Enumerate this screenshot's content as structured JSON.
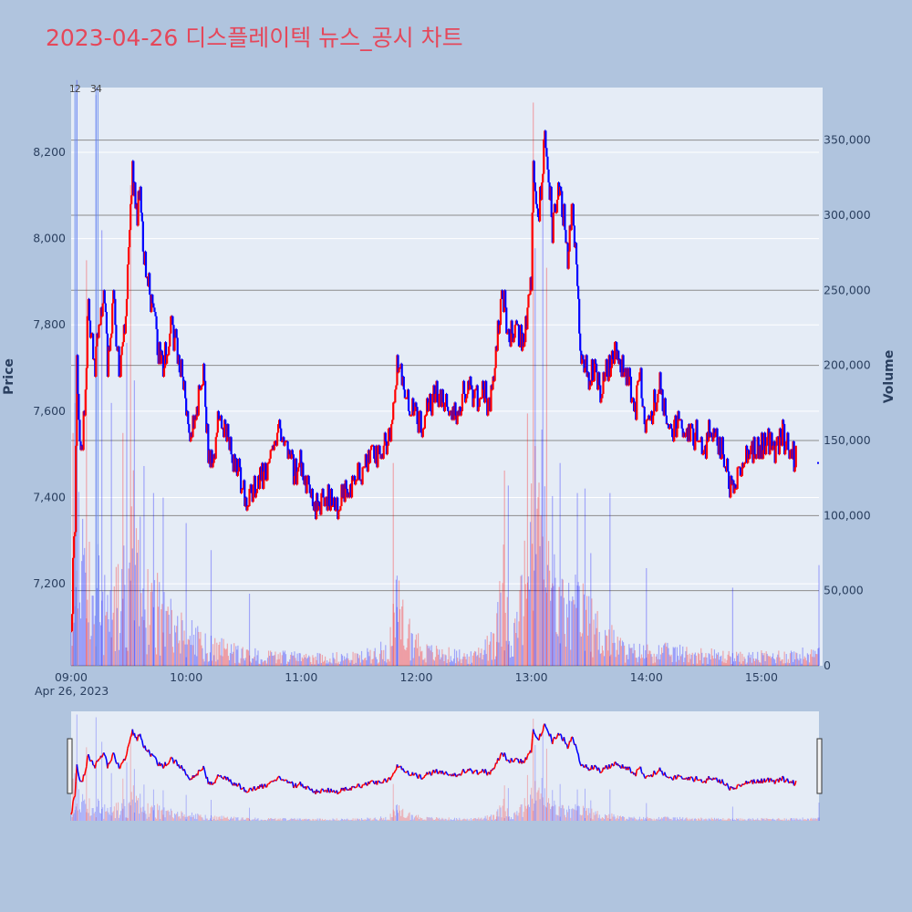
{
  "title": "2023-04-26 디스플레이텍 뉴스_공시 차트",
  "colors": {
    "background": "#b0c4de",
    "plot_bg": "#e5ecf6",
    "up": "#ff0000",
    "down": "#0000ff",
    "title": "#e5475a"
  },
  "chart_data": {
    "type": "line",
    "date_label": "Apr 26, 2023",
    "y_price": {
      "title": "Price",
      "range": [
        7010,
        8350
      ],
      "ticks": [
        7200,
        7400,
        7600,
        7800,
        8000,
        8200
      ],
      "tick_labels": [
        "7,200",
        "7,400",
        "7,600",
        "7,800",
        "8,000",
        "8,200"
      ]
    },
    "y_volume": {
      "title": "Volume",
      "range": [
        0,
        385000
      ],
      "ticks": [
        0,
        50000,
        100000,
        150000,
        200000,
        250000,
        300000,
        350000
      ],
      "tick_labels": [
        "0",
        "50,000",
        "100,000",
        "150,000",
        "200,000",
        "250,000",
        "300,000",
        "350,000"
      ]
    },
    "x_axis": {
      "range": [
        "09:00",
        "15:30"
      ],
      "ticks": [
        "09:00",
        "10:00",
        "11:00",
        "12:00",
        "13:00",
        "14:00",
        "15:00"
      ]
    },
    "news_markers": [
      {
        "label": "1",
        "time": "09:02"
      },
      {
        "label": "2",
        "time": "09:03"
      },
      {
        "label": "3",
        "time": "09:13"
      },
      {
        "label": "4",
        "time": "09:14"
      }
    ],
    "price_anchors": [
      [
        "09:00",
        7100
      ],
      [
        "09:02",
        7350
      ],
      [
        "09:03",
        7700
      ],
      [
        "09:05",
        7480
      ],
      [
        "09:07",
        7600
      ],
      [
        "09:09",
        7850
      ],
      [
        "09:12",
        7700
      ],
      [
        "09:15",
        7800
      ],
      [
        "09:17",
        7900
      ],
      [
        "09:19",
        7700
      ],
      [
        "09:22",
        7850
      ],
      [
        "09:25",
        7700
      ],
      [
        "09:28",
        7780
      ],
      [
        "09:30",
        7950
      ],
      [
        "09:32",
        8150
      ],
      [
        "09:34",
        8050
      ],
      [
        "09:36",
        8100
      ],
      [
        "09:38",
        7950
      ],
      [
        "09:42",
        7850
      ],
      [
        "09:45",
        7750
      ],
      [
        "09:48",
        7700
      ],
      [
        "09:52",
        7800
      ],
      [
        "09:55",
        7750
      ],
      [
        "09:58",
        7680
      ],
      [
        "10:00",
        7600
      ],
      [
        "10:03",
        7550
      ],
      [
        "10:06",
        7620
      ],
      [
        "10:09",
        7680
      ],
      [
        "10:12",
        7480
      ],
      [
        "10:15",
        7520
      ],
      [
        "10:17",
        7600
      ],
      [
        "10:20",
        7560
      ],
      [
        "10:24",
        7500
      ],
      [
        "10:28",
        7450
      ],
      [
        "10:32",
        7380
      ],
      [
        "10:36",
        7430
      ],
      [
        "10:40",
        7450
      ],
      [
        "10:45",
        7500
      ],
      [
        "10:49",
        7560
      ],
      [
        "10:52",
        7520
      ],
      [
        "10:56",
        7460
      ],
      [
        "11:00",
        7480
      ],
      [
        "11:03",
        7420
      ],
      [
        "11:08",
        7380
      ],
      [
        "11:13",
        7400
      ],
      [
        "11:18",
        7380
      ],
      [
        "11:24",
        7420
      ],
      [
        "11:30",
        7450
      ],
      [
        "11:34",
        7480
      ],
      [
        "11:38",
        7500
      ],
      [
        "11:42",
        7520
      ],
      [
        "11:46",
        7530
      ],
      [
        "11:48",
        7600
      ],
      [
        "11:50",
        7700
      ],
      [
        "11:53",
        7680
      ],
      [
        "11:56",
        7620
      ],
      [
        "12:00",
        7580
      ],
      [
        "12:03",
        7560
      ],
      [
        "12:06",
        7600
      ],
      [
        "12:10",
        7640
      ],
      [
        "12:14",
        7620
      ],
      [
        "12:18",
        7600
      ],
      [
        "12:22",
        7580
      ],
      [
        "12:25",
        7650
      ],
      [
        "12:28",
        7670
      ],
      [
        "12:31",
        7620
      ],
      [
        "12:34",
        7660
      ],
      [
        "12:37",
        7620
      ],
      [
        "12:40",
        7650
      ],
      [
        "12:43",
        7800
      ],
      [
        "12:45",
        7880
      ],
      [
        "12:48",
        7770
      ],
      [
        "12:52",
        7800
      ],
      [
        "12:55",
        7760
      ],
      [
        "12:58",
        7820
      ],
      [
        "13:00",
        7900
      ],
      [
        "13:01",
        8150
      ],
      [
        "13:03",
        8050
      ],
      [
        "13:05",
        8100
      ],
      [
        "13:07",
        8250
      ],
      [
        "13:09",
        8150
      ],
      [
        "13:11",
        8020
      ],
      [
        "13:14",
        8100
      ],
      [
        "13:17",
        8050
      ],
      [
        "13:19",
        7950
      ],
      [
        "13:21",
        8080
      ],
      [
        "13:24",
        7900
      ],
      [
        "13:26",
        7720
      ],
      [
        "13:30",
        7680
      ],
      [
        "13:33",
        7700
      ],
      [
        "13:36",
        7650
      ],
      [
        "13:40",
        7700
      ],
      [
        "13:44",
        7740
      ],
      [
        "13:48",
        7700
      ],
      [
        "13:51",
        7680
      ],
      [
        "13:54",
        7600
      ],
      [
        "13:57",
        7680
      ],
      [
        "14:00",
        7560
      ],
      [
        "14:03",
        7600
      ],
      [
        "14:07",
        7660
      ],
      [
        "14:10",
        7600
      ],
      [
        "14:14",
        7560
      ],
      [
        "14:18",
        7580
      ],
      [
        "14:22",
        7540
      ],
      [
        "14:26",
        7550
      ],
      [
        "14:30",
        7510
      ],
      [
        "14:34",
        7560
      ],
      [
        "14:38",
        7520
      ],
      [
        "14:42",
        7480
      ],
      [
        "14:44",
        7420
      ],
      [
        "14:46",
        7410
      ],
      [
        "14:49",
        7480
      ],
      [
        "14:52",
        7500
      ],
      [
        "14:55",
        7520
      ],
      [
        "14:59",
        7510
      ],
      [
        "15:03",
        7540
      ],
      [
        "15:07",
        7500
      ],
      [
        "15:10",
        7550
      ],
      [
        "15:14",
        7520
      ],
      [
        "15:18",
        7490
      ]
    ],
    "price_last": [
      "15:30",
      7480
    ],
    "volume_anchors": [
      [
        "09:00",
        20000
      ],
      [
        "09:02",
        120000
      ],
      [
        "09:05",
        60000
      ],
      [
        "09:10",
        80000
      ],
      [
        "09:15",
        50000
      ],
      [
        "09:20",
        40000
      ],
      [
        "09:25",
        45000
      ],
      [
        "09:30",
        60000
      ],
      [
        "09:33",
        90000
      ],
      [
        "09:38",
        50000
      ],
      [
        "09:45",
        40000
      ],
      [
        "09:55",
        25000
      ],
      [
        "10:10",
        15000
      ],
      [
        "10:30",
        8000
      ],
      [
        "11:00",
        6000
      ],
      [
        "11:30",
        6000
      ],
      [
        "11:45",
        12000
      ],
      [
        "11:50",
        40000
      ],
      [
        "11:55",
        25000
      ],
      [
        "12:05",
        10000
      ],
      [
        "12:30",
        6000
      ],
      [
        "12:42",
        25000
      ],
      [
        "12:46",
        60000
      ],
      [
        "12:50",
        15000
      ],
      [
        "13:00",
        80000
      ],
      [
        "13:03",
        150000
      ],
      [
        "13:08",
        70000
      ],
      [
        "13:15",
        40000
      ],
      [
        "13:25",
        40000
      ],
      [
        "13:35",
        25000
      ],
      [
        "13:50",
        10000
      ],
      [
        "14:10",
        10000
      ],
      [
        "14:30",
        8000
      ],
      [
        "14:50",
        6000
      ],
      [
        "15:20",
        8000
      ]
    ],
    "volume_spikes": [
      [
        "09:01",
        155000,
        1
      ],
      [
        "09:02",
        175000,
        0
      ],
      [
        "09:03",
        390000,
        0
      ],
      [
        "09:08",
        270000,
        1
      ],
      [
        "09:13",
        380000,
        0
      ],
      [
        "09:16",
        290000,
        0
      ],
      [
        "09:21",
        175000,
        0
      ],
      [
        "09:27",
        155000,
        1
      ],
      [
        "09:29",
        215000,
        0
      ],
      [
        "09:31",
        320000,
        1
      ],
      [
        "09:33",
        190000,
        0
      ],
      [
        "09:38",
        133000,
        0
      ],
      [
        "09:43",
        115000,
        0
      ],
      [
        "09:48",
        112000,
        0
      ],
      [
        "10:00",
        95000,
        0
      ],
      [
        "10:13",
        77000,
        0
      ],
      [
        "10:33",
        48000,
        0
      ],
      [
        "11:48",
        135000,
        1
      ],
      [
        "11:50",
        60000,
        0
      ],
      [
        "12:42",
        35000,
        1
      ],
      [
        "12:46",
        130000,
        1
      ],
      [
        "12:48",
        120000,
        0
      ],
      [
        "12:58",
        168000,
        1
      ],
      [
        "13:01",
        375000,
        1
      ],
      [
        "13:02",
        278000,
        0
      ],
      [
        "13:06",
        325000,
        0
      ],
      [
        "13:08",
        265000,
        1
      ],
      [
        "13:11",
        113000,
        0
      ],
      [
        "13:15",
        135000,
        0
      ],
      [
        "13:24",
        115000,
        0
      ],
      [
        "13:28",
        118000,
        0
      ],
      [
        "13:31",
        75000,
        0
      ],
      [
        "13:41",
        115000,
        0
      ],
      [
        "14:00",
        65000,
        0
      ],
      [
        "14:45",
        52000,
        0
      ],
      [
        "15:30",
        67000,
        0
      ]
    ]
  }
}
